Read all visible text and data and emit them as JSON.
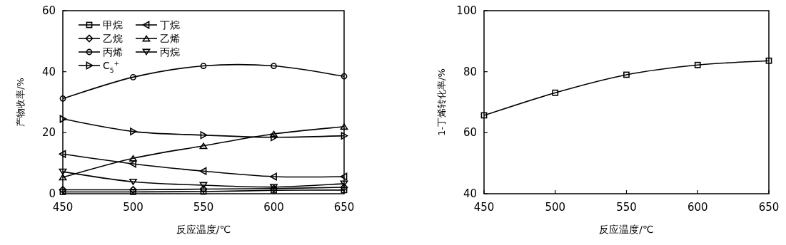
{
  "chart_data": [
    {
      "type": "line",
      "xlabel": "反应温度/℃",
      "ylabel": "产物收率/%",
      "x": [
        450,
        500,
        550,
        600,
        650
      ],
      "xlim": [
        450,
        650
      ],
      "xticks": [
        450,
        500,
        550,
        600,
        650
      ],
      "ylim": [
        0,
        60
      ],
      "yticks": [
        0,
        20,
        40,
        60
      ],
      "grid": false,
      "legend": "top left",
      "line_style": "solid",
      "series": [
        {
          "name": "甲烷",
          "color": "#000000",
          "marker": "square",
          "values": [
            0.6,
            0.6,
            0.7,
            1.1,
            1.2
          ]
        },
        {
          "name": "乙烷",
          "color": "#000000",
          "marker": "diamond",
          "values": [
            1.3,
            1.3,
            1.5,
            1.7,
            2.1
          ]
        },
        {
          "name": "丙烯",
          "color": "#000000",
          "marker": "circle",
          "values": [
            31.2,
            38.2,
            41.9,
            41.9,
            38.5
          ]
        },
        {
          "name": "C$_{5}$$^{+}$",
          "color": "#000000",
          "marker": "triangle-right",
          "values": [
            24.5,
            20.4,
            19.2,
            18.5,
            19.0
          ]
        },
        {
          "name": "丁烷",
          "color": "#000000",
          "marker": "triangle-left",
          "values": [
            13.0,
            9.8,
            7.4,
            5.6,
            5.6
          ]
        },
        {
          "name": "乙烯",
          "color": "#000000",
          "marker": "triangle",
          "values": [
            5.4,
            11.6,
            15.7,
            19.6,
            22.0
          ]
        },
        {
          "name": "丙烷",
          "color": "#000000",
          "marker": "triangle-down",
          "values": [
            7.2,
            3.9,
            2.8,
            2.2,
            3.3
          ]
        }
      ]
    },
    {
      "type": "line",
      "xlabel": "反应温度/℃",
      "ylabel": "1-丁烯转化率/%",
      "x": [
        450,
        500,
        550,
        600,
        650
      ],
      "xlim": [
        450,
        650
      ],
      "xticks": [
        450,
        500,
        550,
        600,
        650
      ],
      "ylim": [
        40,
        100
      ],
      "yticks": [
        40,
        60,
        80,
        100
      ],
      "grid": false,
      "legend": false,
      "line_style": "solid",
      "series": [
        {
          "color": "#000000",
          "marker": "square",
          "values": [
            65.7,
            73.1,
            79.0,
            82.2,
            83.6
          ]
        }
      ]
    }
  ]
}
